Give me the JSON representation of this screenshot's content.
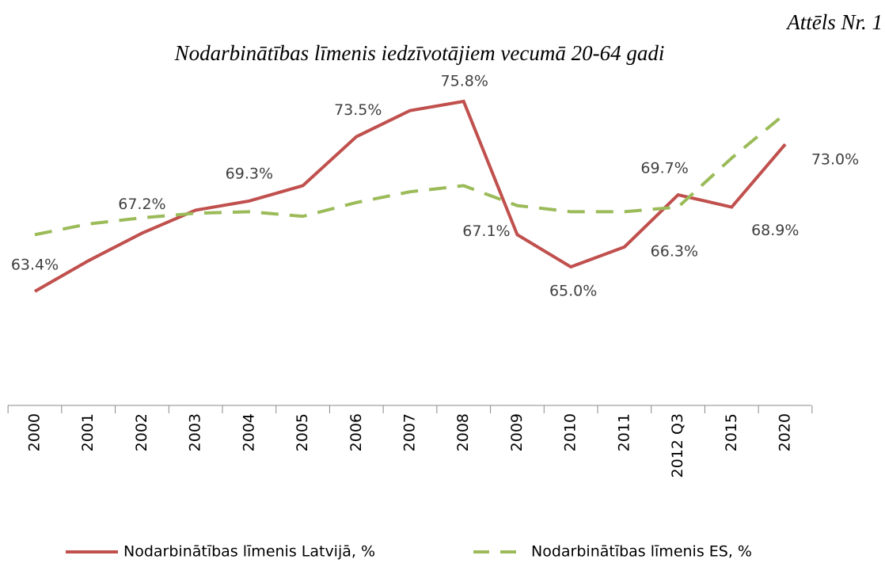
{
  "figure_label": "Attēls Nr. 1",
  "chart_data": {
    "type": "line",
    "title": "Nodarbinātības līmenis iedzīvotājiem vecumā 20-64 gadi",
    "categories": [
      "2000",
      "2001",
      "2002",
      "2003",
      "2004",
      "2005",
      "2006",
      "2007",
      "2008",
      "2009",
      "2010",
      "2011",
      "2012 Q3",
      "2015",
      "2020"
    ],
    "series": [
      {
        "name": "Nodarbinātības līmenis Latvijā, %",
        "color": "#c0504d",
        "dash": "solid",
        "values": [
          63.4,
          65.4,
          67.2,
          68.7,
          69.3,
          70.3,
          73.5,
          75.2,
          75.8,
          67.1,
          65.0,
          66.3,
          69.7,
          68.9,
          73.0
        ],
        "value_labels": [
          "63.4%",
          null,
          "67.2%",
          null,
          "69.3%",
          null,
          "73.5%",
          null,
          "75.8%",
          "67.1%",
          "65.0%",
          "66.3%",
          "69.7%",
          "68.9%",
          "73.0%"
        ]
      },
      {
        "name": "Nodarbinātības līmenis ES, %",
        "color": "#9bbb59",
        "dash": "dashed",
        "values": [
          67.1,
          67.8,
          68.2,
          68.5,
          68.6,
          68.3,
          69.2,
          69.9,
          70.3,
          69.0,
          68.6,
          68.6,
          68.9,
          72.1,
          75.0
        ]
      }
    ],
    "legend": "bottom"
  }
}
